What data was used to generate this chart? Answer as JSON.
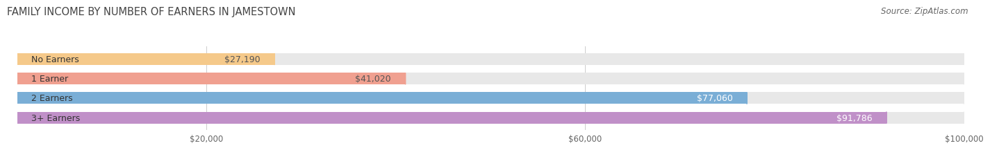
{
  "title": "FAMILY INCOME BY NUMBER OF EARNERS IN JAMESTOWN",
  "source": "Source: ZipAtlas.com",
  "categories": [
    "No Earners",
    "1 Earner",
    "2 Earners",
    "3+ Earners"
  ],
  "values": [
    27190,
    41020,
    77060,
    91786
  ],
  "labels": [
    "$27,190",
    "$41,020",
    "$77,060",
    "$91,786"
  ],
  "bar_colors": [
    "#f5c98a",
    "#f0a090",
    "#7aaed6",
    "#c090c8"
  ],
  "label_colors": [
    "#555555",
    "#555555",
    "#ffffff",
    "#ffffff"
  ],
  "xlim": [
    0,
    100000
  ],
  "xticks": [
    20000,
    60000,
    100000
  ],
  "xticklabels": [
    "$20,000",
    "$60,000",
    "$100,000"
  ],
  "title_fontsize": 10.5,
  "source_fontsize": 8.5,
  "bar_label_fontsize": 9,
  "category_fontsize": 9,
  "tick_fontsize": 8.5,
  "background_color": "#ffffff",
  "bar_bg_full_color": "#e8e8e8"
}
